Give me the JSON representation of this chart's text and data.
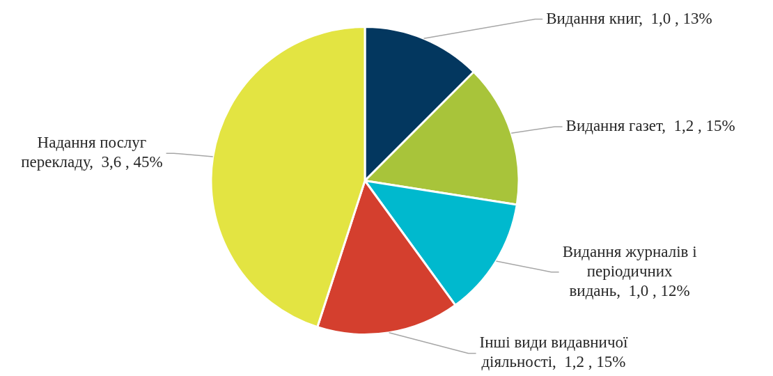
{
  "chart_data": {
    "type": "pie",
    "categories": [
      "Видання книг",
      "Видання газет",
      "Видання журналів і періодичних видань",
      "Інші види видавничої діяльності",
      "Надання послуг перекладу"
    ],
    "values": [
      1.0,
      1.2,
      1.0,
      1.2,
      3.6
    ],
    "value_labels": [
      "1,0 , 13%",
      "1,2 , 15%",
      "1,0 , 12%",
      "1,2 , 15%",
      "3,6 , 45%"
    ],
    "colors": [
      "#03375f",
      "#a8c43a",
      "#00b9ce",
      "#d43f2e",
      "#e3e442"
    ],
    "legend": false
  }
}
